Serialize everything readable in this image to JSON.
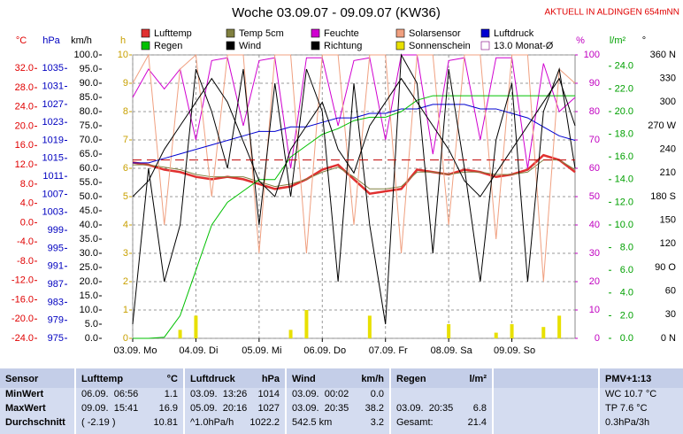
{
  "chart_data": {
    "type": "line",
    "title": "Woche 03.09.07 - 09.09.07 (KW36)",
    "subtitle": "AKTUELL IN ALDINGEN 654mNN",
    "xlim": [
      0,
      7
    ],
    "xticks": [
      {
        "value": 0,
        "label": "03.09. Mo"
      },
      {
        "value": 1,
        "label": "04.09. Di"
      },
      {
        "value": 2,
        "label": "05.09. Mi"
      },
      {
        "value": 3,
        "label": "06.09. Do"
      },
      {
        "value": 4,
        "label": "07.09. Fr"
      },
      {
        "value": 5,
        "label": "08.09. Sa"
      },
      {
        "value": 6,
        "label": "09.09. So"
      }
    ],
    "x": [
      0,
      0.25,
      0.5,
      0.75,
      1,
      1.25,
      1.5,
      1.75,
      2,
      2.25,
      2.5,
      2.75,
      3,
      3.25,
      3.5,
      3.75,
      4,
      4.25,
      4.5,
      4.75,
      5,
      5.25,
      5.5,
      5.75,
      6,
      6.25,
      6.5,
      6.75,
      7
    ],
    "grid": true,
    "axes": [
      {
        "unit": "°C",
        "color": "#e00000",
        "lim": [
          -24,
          34.8
        ],
        "ticks": [
          {
            "value": 32,
            "label": "32.0"
          },
          {
            "value": 28,
            "label": "28.0"
          },
          {
            "value": 24,
            "label": "24.0"
          },
          {
            "value": 20,
            "label": "20.0"
          },
          {
            "value": 16,
            "label": "16.0"
          },
          {
            "value": 12,
            "label": "12.0"
          },
          {
            "value": 8,
            "label": "8.0"
          },
          {
            "value": 4,
            "label": "4.0"
          },
          {
            "value": 0,
            "label": "0.0"
          },
          {
            "value": -4,
            "label": "-4.0"
          },
          {
            "value": -8,
            "label": "-8.0"
          },
          {
            "value": -12,
            "label": "-12.0"
          },
          {
            "value": -16,
            "label": "-16.0"
          },
          {
            "value": -20,
            "label": "-20.0"
          },
          {
            "value": -24,
            "label": "-24.0"
          }
        ]
      },
      {
        "unit": "hPa",
        "color": "#0000c0",
        "lim": [
          975,
          1038
        ],
        "ticks": [
          1035,
          1031,
          1027,
          1023,
          1019,
          1015,
          1011,
          1007,
          1003,
          999,
          995,
          991,
          987,
          983,
          979,
          975
        ]
      },
      {
        "unit": "km/h",
        "color": "#000000",
        "lim": [
          0,
          100
        ],
        "ticks": [
          {
            "value": 100,
            "label": "100.0"
          },
          {
            "value": 95,
            "label": "95.0"
          },
          {
            "value": 90,
            "label": "90.0"
          },
          {
            "value": 85,
            "label": "85.0"
          },
          {
            "value": 80,
            "label": "80.0"
          },
          {
            "value": 75,
            "label": "75.0"
          },
          {
            "value": 70,
            "label": "70.0"
          },
          {
            "value": 65,
            "label": "65.0"
          },
          {
            "value": 60,
            "label": "60.0"
          },
          {
            "value": 55,
            "label": "55.0"
          },
          {
            "value": 50,
            "label": "50.0"
          },
          {
            "value": 45,
            "label": "45.0"
          },
          {
            "value": 40,
            "label": "40.0"
          },
          {
            "value": 35,
            "label": "35.0"
          },
          {
            "value": 30,
            "label": "30.0"
          },
          {
            "value": 25,
            "label": "25.0"
          },
          {
            "value": 20,
            "label": "20.0"
          },
          {
            "value": 15,
            "label": "15.0"
          },
          {
            "value": 10,
            "label": "10.0"
          },
          {
            "value": 5,
            "label": "5.0"
          },
          {
            "value": 0,
            "label": "0.0"
          }
        ]
      },
      {
        "unit": "h",
        "color": "#c8a000",
        "lim": [
          0,
          10
        ],
        "ticks": [
          10,
          9,
          8,
          7,
          6,
          5,
          4,
          3,
          2,
          1,
          0
        ]
      },
      {
        "unit": "%",
        "color": "#c000c0",
        "lim": [
          0,
          100
        ],
        "ticks": [
          100,
          90,
          80,
          70,
          60,
          50,
          40,
          30,
          20,
          10,
          0
        ]
      },
      {
        "unit": "l/m²",
        "color": "#00a000",
        "lim": [
          0,
          25
        ],
        "ticks": [
          {
            "value": 24,
            "label": "24.0"
          },
          {
            "value": 22,
            "label": "22.0"
          },
          {
            "value": 20,
            "label": "20.0"
          },
          {
            "value": 18,
            "label": "18.0"
          },
          {
            "value": 16,
            "label": "16.0"
          },
          {
            "value": 14,
            "label": "14.0"
          },
          {
            "value": 12,
            "label": "12.0"
          },
          {
            "value": 10,
            "label": "10.0"
          },
          {
            "value": 8,
            "label": "8.0"
          },
          {
            "value": 6,
            "label": "6.0"
          },
          {
            "value": 4,
            "label": "4.0"
          },
          {
            "value": 2,
            "label": "2.0"
          },
          {
            "value": 0,
            "label": "0.0"
          }
        ]
      },
      {
        "unit": "°",
        "color": "#000000",
        "lim": [
          0,
          360
        ],
        "ticks": [
          {
            "value": 360,
            "label": "360 N"
          },
          330,
          300,
          {
            "value": 270,
            "label": "270 W"
          },
          240,
          210,
          {
            "value": 180,
            "label": "180 S"
          },
          150,
          120,
          {
            "value": 90,
            "label": "90 O"
          },
          60,
          30,
          {
            "value": 0,
            "label": "0 N"
          }
        ]
      }
    ],
    "series": [
      {
        "name": "Lufttemp",
        "color": "#e03030",
        "axis": "°C",
        "values": [
          12.5,
          12,
          11,
          10.5,
          9.5,
          9,
          9.5,
          9,
          8,
          7,
          7.5,
          9,
          11,
          12,
          9,
          6,
          6.5,
          7,
          11,
          10.5,
          10,
          11,
          10.5,
          9.5,
          10,
          11,
          14,
          13,
          10.5
        ]
      },
      {
        "name": "Temp 5cm",
        "color": "#808040",
        "axis": "°C",
        "values": [
          12,
          12,
          11.5,
          11,
          10,
          9.5,
          9.5,
          9.5,
          8.5,
          7.5,
          8,
          9,
          10.5,
          11.5,
          9.5,
          7,
          7,
          7.5,
          10.5,
          10.5,
          10,
          10.5,
          10.5,
          10,
          10,
          10.5,
          13,
          13,
          11
        ]
      },
      {
        "name": "Feuchte",
        "color": "#d000d0",
        "axis": "%",
        "values": [
          85,
          95,
          88,
          95,
          70,
          98,
          99,
          75,
          98,
          99,
          60,
          99,
          99,
          75,
          98,
          99,
          70,
          100,
          100,
          65,
          98,
          99,
          70,
          99,
          99,
          60,
          97,
          80,
          85
        ]
      },
      {
        "name": "Solarsensor",
        "color": "#f0a080",
        "axis": "%",
        "values": [
          90,
          100,
          40,
          95,
          100,
          50,
          100,
          100,
          30,
          100,
          100,
          30,
          100,
          100,
          40,
          100,
          100,
          30,
          100,
          100,
          40,
          100,
          100,
          35,
          100,
          100,
          20,
          95,
          90
        ]
      },
      {
        "name": "Luftdruck",
        "color": "#0000d0",
        "axis": "hPa",
        "values": [
          1014,
          1014,
          1015,
          1016,
          1017,
          1018,
          1019,
          1020,
          1021,
          1021,
          1022,
          1022,
          1023,
          1024,
          1024,
          1025,
          1025,
          1026,
          1026,
          1027,
          1027,
          1027,
          1026,
          1026,
          1025,
          1024,
          1022,
          1020,
          1019
        ]
      },
      {
        "name": "Regen",
        "color": "#00c000",
        "axis": "l/m²",
        "values": [
          0,
          0,
          0.1,
          2,
          6,
          10,
          12,
          13,
          14,
          14,
          16,
          17,
          18,
          18.5,
          19.2,
          19.5,
          19.5,
          20,
          21,
          21.4,
          21.4,
          21.4,
          21.4,
          21.4,
          21.4,
          21.4,
          21.4,
          21.4,
          21.4
        ]
      },
      {
        "name": "Wind",
        "color": "#000000",
        "axis": "km/h",
        "values": [
          5,
          60,
          20,
          40,
          95,
          80,
          60,
          95,
          40,
          90,
          50,
          95,
          80,
          20,
          90,
          40,
          5,
          100,
          90,
          30,
          95,
          60,
          20,
          70,
          90,
          20,
          80,
          95,
          60
        ]
      },
      {
        "name": "Richtung",
        "color": "#000000",
        "axis": "°",
        "values": [
          180,
          200,
          240,
          270,
          300,
          330,
          300,
          250,
          200,
          180,
          240,
          270,
          300,
          240,
          210,
          270,
          300,
          330,
          300,
          270,
          240,
          200,
          180,
          210,
          240,
          270,
          300,
          330,
          270
        ]
      },
      {
        "name": "Sonnenschein",
        "color": "#e8e000",
        "axis": "h",
        "kind": "bar",
        "values": [
          0,
          0,
          0,
          0.3,
          0.8,
          0,
          0,
          0,
          0,
          0,
          0.3,
          1,
          0,
          0,
          0,
          0.8,
          0,
          0,
          0,
          0,
          0.5,
          0,
          0,
          0.2,
          0.5,
          0,
          0.4,
          0.8,
          0
        ]
      },
      {
        "name": "13.0 Monat-Ø",
        "color": "#c00000",
        "axis": "°C",
        "kind": "hline",
        "value": 13.0
      }
    ]
  },
  "table": {
    "groups": [
      {
        "header": [
          "Sensor"
        ],
        "rows": [
          [
            "MinWert"
          ],
          [
            "MaxWert"
          ],
          [
            "Durchschnitt"
          ]
        ]
      },
      {
        "header": [
          "Lufttemp",
          "°C"
        ],
        "rows": [
          [
            "06.09.  06:56",
            "1.1"
          ],
          [
            "09.09.  15:41",
            "16.9"
          ],
          [
            "( -2.19 )",
            "10.81"
          ]
        ]
      },
      {
        "header": [
          "Luftdruck",
          "hPa"
        ],
        "rows": [
          [
            "03.09.  13:26",
            "1014"
          ],
          [
            "05.09.  20:16",
            "1027"
          ],
          [
            "^1.0hPa/h",
            "1022.2"
          ]
        ]
      },
      {
        "header": [
          "Wind",
          "km/h"
        ],
        "rows": [
          [
            "03.09.  00:02",
            "0.0"
          ],
          [
            "03.09.  20:35",
            "38.2"
          ],
          [
            "542.5 km",
            "3.2"
          ]
        ]
      },
      {
        "header": [
          "Regen",
          "l/m²"
        ],
        "rows": [
          [],
          [
            "03.09.  20:35",
            "6.8"
          ],
          [
            "Gesamt:",
            "21.4"
          ]
        ]
      },
      {
        "header": [],
        "rows": []
      },
      {
        "header": [
          "PMV+1:13"
        ],
        "rows": [
          [
            "WC 10.7 °C"
          ],
          [
            "TP 7.6 °C"
          ],
          [
            "0.3hPa/3h"
          ]
        ]
      }
    ]
  }
}
